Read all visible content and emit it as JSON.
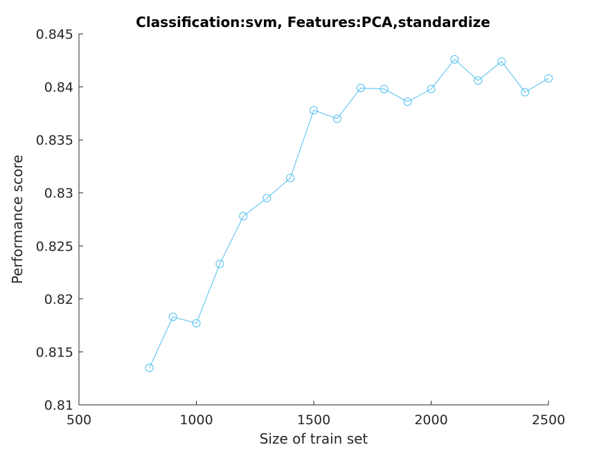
{
  "chart_data": {
    "type": "line",
    "title": "Classification:svm, Features:PCA,standardize",
    "xlabel": "Size of train set",
    "ylabel": "Performance score",
    "xlim": [
      500,
      2500
    ],
    "ylim": [
      0.81,
      0.845
    ],
    "x_ticks": [
      500,
      1000,
      1500,
      2000,
      2500
    ],
    "x_tick_labels": [
      "500",
      "1000",
      "1500",
      "2000",
      "2500"
    ],
    "y_ticks": [
      0.81,
      0.815,
      0.82,
      0.825,
      0.83,
      0.835,
      0.84,
      0.845
    ],
    "y_tick_labels": [
      "0.81",
      "0.815",
      "0.82",
      "0.825",
      "0.83",
      "0.835",
      "0.84",
      "0.845"
    ],
    "grid": false,
    "marker": "circle",
    "series": [
      {
        "color": "#4dbeee",
        "x": [
          800,
          900,
          1000,
          1100,
          1200,
          1300,
          1400,
          1500,
          1600,
          1700,
          1800,
          1900,
          2000,
          2100,
          2200,
          2300,
          2400,
          2500
        ],
        "y": [
          0.8135,
          0.8183,
          0.8177,
          0.8233,
          0.8278,
          0.8295,
          0.8314,
          0.8378,
          0.837,
          0.8399,
          0.8398,
          0.8386,
          0.8398,
          0.8426,
          0.8406,
          0.8424,
          0.8395,
          0.8408
        ]
      }
    ]
  }
}
